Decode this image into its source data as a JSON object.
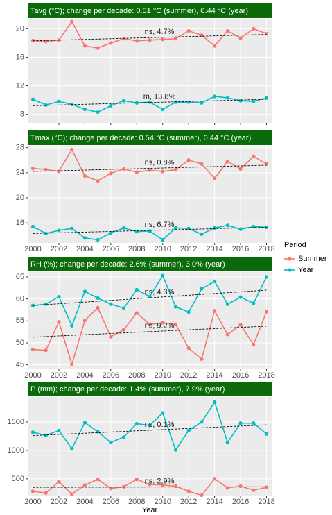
{
  "chart_data": [
    {
      "type": "line",
      "title": "Tavg (°C); change per decade: 0.51 °C (summer), 0.44 °C (year)",
      "x": [
        2000,
        2001,
        2002,
        2003,
        2004,
        2005,
        2006,
        2007,
        2008,
        2009,
        2010,
        2011,
        2012,
        2013,
        2014,
        2015,
        2016,
        2017,
        2018
      ],
      "xlim": [
        1999.6,
        2018.4
      ],
      "xticks": [
        2000,
        2002,
        2004,
        2006,
        2008,
        2010,
        2012,
        2014,
        2016,
        2018
      ],
      "x_tick_labels": false,
      "ylim": [
        6.8,
        21.4
      ],
      "yticks": [
        8,
        12,
        16,
        20
      ],
      "grid": true,
      "series": [
        {
          "name": "Summer",
          "color": "#F8766D",
          "values": [
            18.35,
            18.2,
            18.4,
            21.0,
            17.6,
            17.3,
            18.0,
            18.6,
            18.3,
            18.4,
            18.5,
            18.6,
            19.7,
            19.1,
            17.6,
            19.7,
            18.7,
            20.0,
            19.3
          ],
          "trend": {
            "x": [
              2000,
              2018
            ],
            "values": [
              18.3,
              19.2
            ]
          },
          "annotation": "ns, 4.7%"
        },
        {
          "name": "Year",
          "color": "#00BFC4",
          "values": [
            10.1,
            9.3,
            9.8,
            9.4,
            8.7,
            8.3,
            9.2,
            9.9,
            9.6,
            9.7,
            8.7,
            9.7,
            9.7,
            9.6,
            10.5,
            10.3,
            9.9,
            9.8,
            10.3
          ],
          "trend": {
            "x": [
              2000,
              2018
            ],
            "values": [
              9.2,
              10.1
            ]
          },
          "annotation": "m, 13.8%"
        }
      ]
    },
    {
      "type": "line",
      "title": "Tmax (°C); change per decade: 0.54 °C (summer), 0.44 °C (year)",
      "x": [
        2000,
        2001,
        2002,
        2003,
        2004,
        2005,
        2006,
        2007,
        2008,
        2009,
        2010,
        2011,
        2012,
        2013,
        2014,
        2015,
        2016,
        2017,
        2018
      ],
      "xlim": [
        1999.6,
        2018.4
      ],
      "xticks": [
        2000,
        2002,
        2004,
        2006,
        2008,
        2010,
        2012,
        2014,
        2016,
        2018
      ],
      "x_tick_labels": true,
      "ylim": [
        12.8,
        28.3
      ],
      "yticks": [
        16,
        20,
        24,
        28
      ],
      "grid": true,
      "series": [
        {
          "name": "Summer",
          "color": "#F8766D",
          "values": [
            24.7,
            24.5,
            24.2,
            27.7,
            23.5,
            22.7,
            23.9,
            24.6,
            24.1,
            24.4,
            24.2,
            24.5,
            26.0,
            25.4,
            23.1,
            25.8,
            24.6,
            26.6,
            25.4
          ],
          "trend": {
            "x": [
              2000,
              2018
            ],
            "values": [
              24.2,
              25.2
            ]
          },
          "annotation": "ns, 0.8%"
        },
        {
          "name": "Year",
          "color": "#00BFC4",
          "values": [
            15.4,
            14.3,
            14.8,
            15.1,
            13.6,
            13.3,
            14.4,
            15.2,
            14.6,
            14.7,
            13.3,
            15.2,
            15.1,
            14.2,
            15.2,
            15.6,
            15.0,
            15.4,
            15.3
          ],
          "trend": {
            "x": [
              2000,
              2018
            ],
            "values": [
              14.3,
              15.3
            ]
          },
          "annotation": "ns, 6.7%"
        }
      ]
    },
    {
      "type": "line",
      "title": "RH (%); change per decade: 2.6% (summer), 3.0% (year)",
      "x": [
        2000,
        2001,
        2002,
        2003,
        2004,
        2005,
        2006,
        2007,
        2008,
        2009,
        2010,
        2011,
        2012,
        2013,
        2014,
        2015,
        2016,
        2017,
        2018
      ],
      "xlim": [
        1999.6,
        2018.4
      ],
      "xticks": [
        2000,
        2002,
        2004,
        2006,
        2008,
        2010,
        2012,
        2014,
        2016,
        2018
      ],
      "x_tick_labels": true,
      "ylim": [
        44,
        66.1
      ],
      "yticks": [
        45,
        50,
        55,
        60,
        65
      ],
      "grid": true,
      "series": [
        {
          "name": "Summer",
          "color": "#F8766D",
          "values": [
            48.5,
            48.3,
            54.8,
            45.1,
            55.1,
            58.0,
            51.4,
            53.0,
            56.8,
            54.2,
            54.6,
            54.2,
            48.8,
            46.3,
            57.3,
            51.9,
            54.1,
            49.6,
            57.1
          ],
          "trend": {
            "x": [
              2000,
              2018
            ],
            "values": [
              51.3,
              53.8
            ]
          },
          "annotation": "ns, 9.2%"
        },
        {
          "name": "Year",
          "color": "#00BFC4",
          "values": [
            58.5,
            58.8,
            60.5,
            53.9,
            61.7,
            60.2,
            58.8,
            57.9,
            62.1,
            60.5,
            65.3,
            58.2,
            57.0,
            62.3,
            64.0,
            58.8,
            60.4,
            59.0,
            65.0
          ],
          "trend": {
            "x": [
              2000,
              2018
            ],
            "values": [
              58.5,
              62.0
            ]
          },
          "annotation": "ns, 4.3%"
        }
      ]
    },
    {
      "type": "line",
      "title": "P (mm); change per decade: 1.4% (summer), 7.9% (year)",
      "x": [
        2000,
        2001,
        2002,
        2003,
        2004,
        2005,
        2006,
        2007,
        2008,
        2009,
        2010,
        2011,
        2012,
        2013,
        2014,
        2015,
        2016,
        2017,
        2018
      ],
      "xlim": [
        1999.6,
        2018.4
      ],
      "xticks": [
        2000,
        2002,
        2004,
        2006,
        2008,
        2010,
        2012,
        2014,
        2016,
        2018
      ],
      "x_tick_labels": true,
      "ylim": [
        205,
        1940
      ],
      "yticks": [
        500,
        1000,
        1500
      ],
      "grid": true,
      "xlabel": "Year",
      "series": [
        {
          "name": "Summer",
          "color": "#F8766D",
          "values": [
            280,
            250,
            450,
            230,
            390,
            490,
            330,
            360,
            490,
            400,
            390,
            370,
            280,
            210,
            500,
            340,
            370,
            300,
            350
          ],
          "trend": {
            "x": [
              2000,
              2018
            ],
            "values": [
              350,
              360
            ]
          },
          "annotation": "ns, 2.9%"
        },
        {
          "name": "Year",
          "color": "#00BFC4",
          "values": [
            1320,
            1265,
            1350,
            1030,
            1490,
            1330,
            1140,
            1235,
            1470,
            1440,
            1660,
            1010,
            1350,
            1500,
            1850,
            1140,
            1480,
            1480,
            1290
          ],
          "trend": {
            "x": [
              2000,
              2018
            ],
            "values": [
              1260,
              1450
            ]
          },
          "annotation": "ns, 0.1%"
        }
      ]
    }
  ],
  "legend": {
    "title": "Period",
    "position": "right"
  }
}
